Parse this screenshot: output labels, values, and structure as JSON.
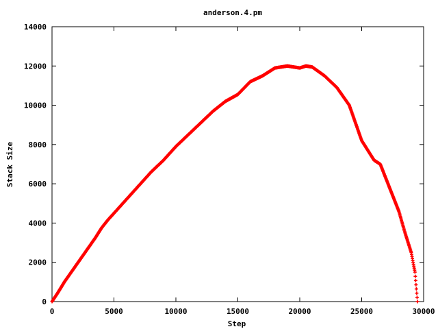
{
  "chart_data": {
    "type": "scatter",
    "title": "anderson.4.pm",
    "xlabel": "Step",
    "ylabel": "Stack Size",
    "xlim": [
      0,
      30000
    ],
    "ylim": [
      0,
      14000
    ],
    "x_ticks": [
      0,
      5000,
      10000,
      15000,
      20000,
      25000,
      30000
    ],
    "y_ticks": [
      0,
      2000,
      4000,
      6000,
      8000,
      10000,
      12000,
      14000
    ],
    "grid": false,
    "marker_color": "#ff0000",
    "series": [
      {
        "points": [
          [
            0,
            0
          ],
          [
            500,
            480
          ],
          [
            1000,
            1000
          ],
          [
            1500,
            1450
          ],
          [
            2000,
            1900
          ],
          [
            2500,
            2350
          ],
          [
            3000,
            2800
          ],
          [
            3500,
            3250
          ],
          [
            4000,
            3750
          ],
          [
            4500,
            4150
          ],
          [
            5000,
            4500
          ],
          [
            6000,
            5200
          ],
          [
            7000,
            5900
          ],
          [
            8000,
            6600
          ],
          [
            9000,
            7200
          ],
          [
            10000,
            7900
          ],
          [
            11000,
            8500
          ],
          [
            12000,
            9100
          ],
          [
            13000,
            9700
          ],
          [
            14000,
            10200
          ],
          [
            15000,
            10550
          ],
          [
            16000,
            11200
          ],
          [
            17000,
            11500
          ],
          [
            18000,
            11900
          ],
          [
            19000,
            12000
          ],
          [
            20000,
            11900
          ],
          [
            20500,
            12000
          ],
          [
            21000,
            11950
          ],
          [
            22000,
            11500
          ],
          [
            23000,
            10900
          ],
          [
            24000,
            10000
          ],
          [
            25000,
            8200
          ],
          [
            26000,
            7200
          ],
          [
            26500,
            7000
          ],
          [
            27000,
            6200
          ],
          [
            27500,
            5400
          ],
          [
            28000,
            4600
          ],
          [
            28500,
            3500
          ],
          [
            29000,
            2500
          ],
          [
            29300,
            1500
          ],
          [
            29500,
            0
          ]
        ]
      }
    ]
  }
}
